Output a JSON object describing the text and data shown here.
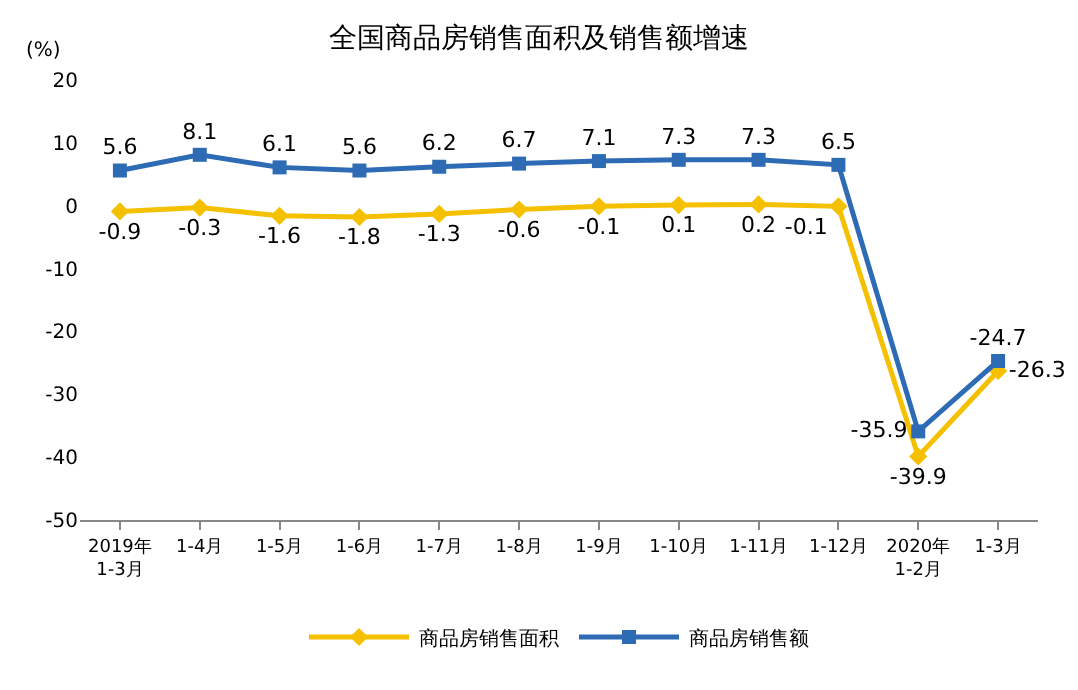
{
  "chart_data": {
    "type": "line",
    "title": "全国商品房销售面积及销售额增速",
    "ylabel": "(%)",
    "categories": [
      "2019年\n1-3月",
      "1-4月",
      "1-5月",
      "1-6月",
      "1-7月",
      "1-8月",
      "1-9月",
      "1-10月",
      "1-11月",
      "1-12月",
      "2020年\n1-2月",
      "1-3月"
    ],
    "series": [
      {
        "name": "商品房销售面积",
        "color": "#f5c000",
        "marker": "diamond",
        "values": [
          -0.9,
          -0.3,
          -1.6,
          -1.8,
          -1.3,
          -0.6,
          -0.1,
          0.1,
          0.2,
          -0.1,
          -39.9,
          -26.3
        ]
      },
      {
        "name": "商品房销售额",
        "color": "#2e6bb5",
        "marker": "square",
        "values": [
          5.6,
          8.1,
          6.1,
          5.6,
          6.2,
          6.7,
          7.1,
          7.3,
          7.3,
          6.5,
          -35.9,
          -24.7
        ]
      }
    ],
    "ylim": [
      -50,
      20
    ],
    "yticks": [
      -50,
      -40,
      -30,
      -20,
      -10,
      0,
      10,
      20
    ],
    "grid": false,
    "legend": "bottom",
    "data_labels": true,
    "line_style": "solid"
  }
}
